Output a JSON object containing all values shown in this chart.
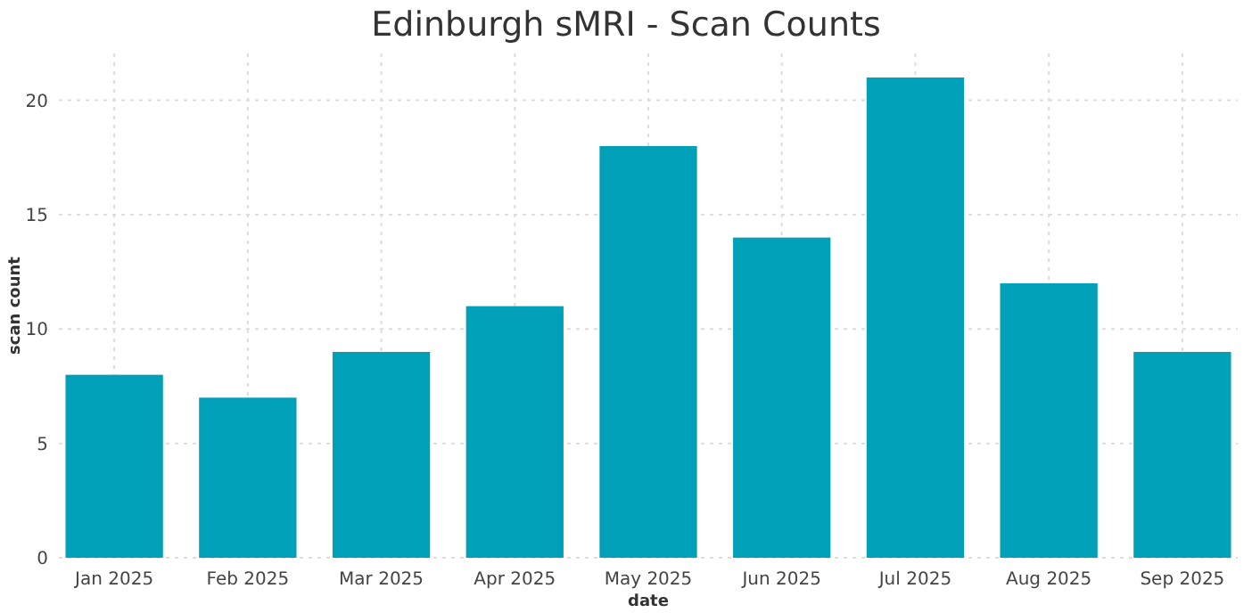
{
  "chart_data": {
    "type": "bar",
    "title": "Edinburgh sMRI - Scan Counts",
    "xlabel": "date",
    "ylabel": "scan count",
    "categories": [
      "Jan 2025",
      "Feb 2025",
      "Mar 2025",
      "Apr 2025",
      "May 2025",
      "Jun 2025",
      "Jul 2025",
      "Aug 2025",
      "Sep 2025"
    ],
    "values": [
      8,
      7,
      9,
      11,
      18,
      14,
      21,
      12,
      9
    ],
    "color": "#00a0b8",
    "ylim": [
      0,
      22.05
    ],
    "yticks": [
      0,
      5,
      10,
      15,
      20
    ],
    "grid": true
  }
}
